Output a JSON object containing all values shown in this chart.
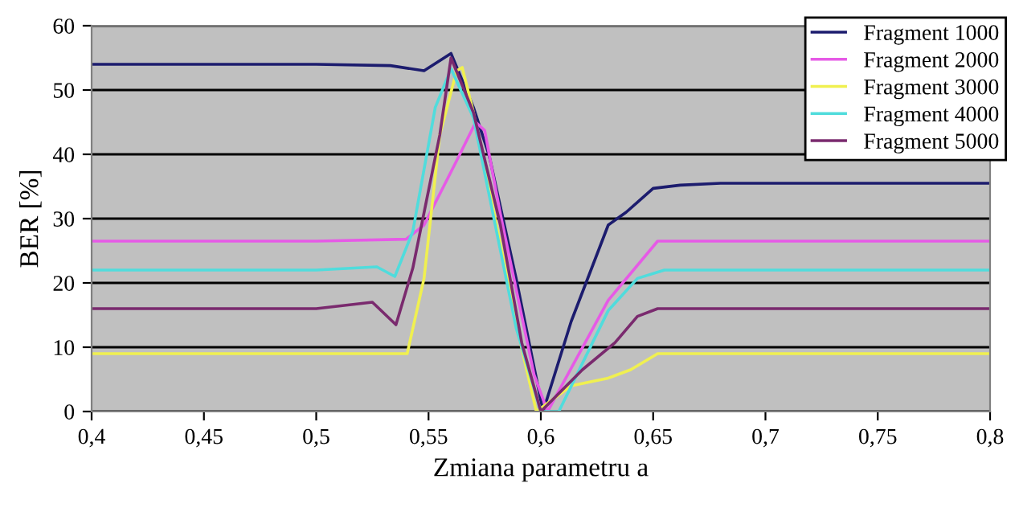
{
  "chart_data": {
    "type": "line",
    "xlabel": "Zmiana parametru a",
    "ylabel": "BER [%]",
    "xlim": [
      0.4,
      0.8
    ],
    "ylim": [
      0,
      60
    ],
    "xticks": [
      {
        "value": 0.4,
        "label": "0,4"
      },
      {
        "value": 0.45,
        "label": "0,45"
      },
      {
        "value": 0.5,
        "label": "0,5"
      },
      {
        "value": 0.55,
        "label": "0,55"
      },
      {
        "value": 0.6,
        "label": "0,6"
      },
      {
        "value": 0.65,
        "label": "0,65"
      },
      {
        "value": 0.7,
        "label": "0,7"
      },
      {
        "value": 0.75,
        "label": "0,75"
      },
      {
        "value": 0.8,
        "label": "0,8"
      }
    ],
    "yticks": [
      0,
      10,
      20,
      30,
      40,
      50,
      60
    ],
    "grid": "y",
    "legend": "top right",
    "marker": "none",
    "line_style": "solid",
    "series": [
      {
        "name": "Fragment 1000",
        "color": "#1c1c6e",
        "x": [
          0.4,
          0.5,
          0.533,
          0.548,
          0.56,
          0.57,
          0.577,
          0.589,
          0.601,
          0.6135,
          0.63,
          0.638,
          0.65,
          0.662,
          0.68,
          0.8
        ],
        "values": [
          54,
          54,
          53.8,
          53,
          55.7,
          47.3,
          39.8,
          20.7,
          0,
          14,
          29,
          31,
          34.7,
          35.2,
          35.5,
          35.5
        ]
      },
      {
        "name": "Fragment 2000",
        "color": "#e65ae6",
        "x": [
          0.4,
          0.5,
          0.54,
          0.548,
          0.5625,
          0.571,
          0.575,
          0.582,
          0.597,
          0.603,
          0.63,
          0.652,
          0.8
        ],
        "values": [
          26.5,
          26.5,
          26.8,
          29,
          39,
          45,
          43.7,
          30.7,
          5.7,
          0,
          17.3,
          26.5,
          26.5
        ]
      },
      {
        "name": "Fragment 3000",
        "color": "#f0f050",
        "x": [
          0.4,
          0.5,
          0.5405,
          0.548,
          0.555,
          0.5625,
          0.565,
          0.57,
          0.5915,
          0.598,
          0.6135,
          0.63,
          0.64,
          0.652,
          0.8
        ],
        "values": [
          9,
          9,
          9,
          20.7,
          43,
          53,
          53.5,
          46.5,
          9.8,
          0,
          4,
          5.2,
          6.5,
          9,
          9
        ]
      },
      {
        "name": "Fragment 4000",
        "color": "#50dcdc",
        "x": [
          0.4,
          0.5,
          0.527,
          0.535,
          0.543,
          0.553,
          0.56,
          0.57,
          0.589,
          0.6,
          0.608,
          0.63,
          0.643,
          0.655,
          0.8
        ],
        "values": [
          22,
          22,
          22.5,
          21,
          28,
          47.3,
          53.3,
          45.7,
          13,
          0,
          0,
          15.7,
          20.7,
          22,
          22
        ]
      },
      {
        "name": "Fragment 5000",
        "color": "#7a2a6e",
        "x": [
          0.4,
          0.5,
          0.525,
          0.5355,
          0.543,
          0.555,
          0.56,
          0.57,
          0.582,
          0.5915,
          0.6,
          0.6185,
          0.633,
          0.643,
          0.652,
          0.8
        ],
        "values": [
          16,
          16,
          17,
          13.5,
          22.3,
          43,
          55,
          46.5,
          29,
          10.7,
          0,
          6.5,
          10.7,
          14.8,
          16,
          16
        ]
      }
    ]
  }
}
